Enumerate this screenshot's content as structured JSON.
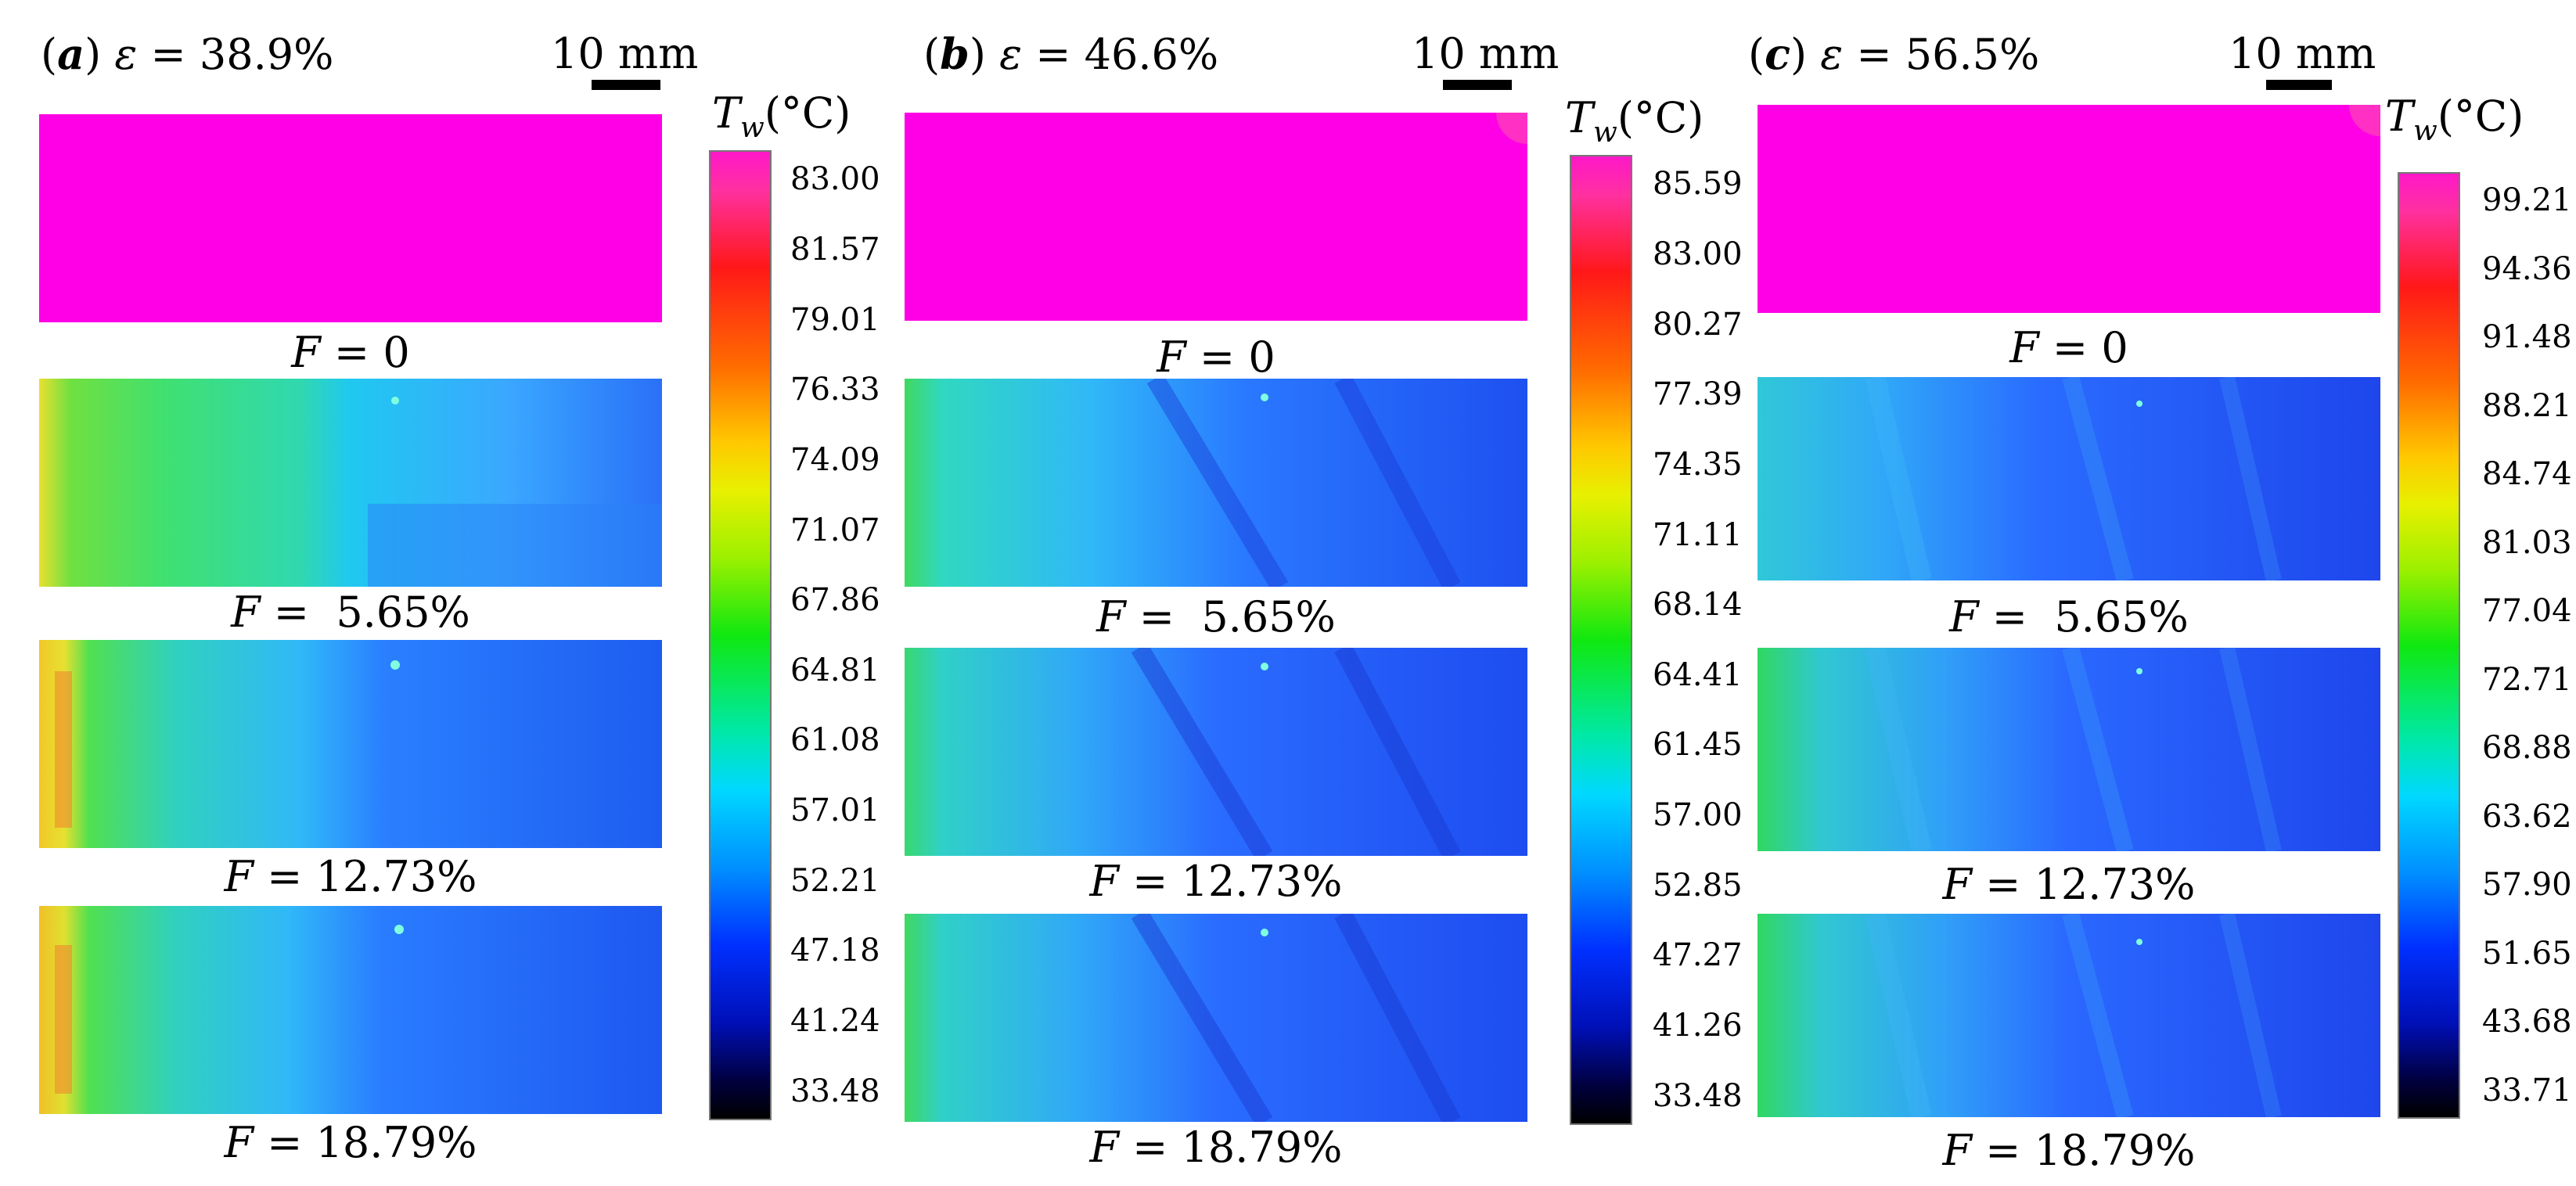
{
  "scale_label": "10 mm",
  "colorbar_title": {
    "symbol": "T",
    "subscript": "w",
    "unit": "(°C)"
  },
  "caption_symbol": "F",
  "panels": [
    {
      "letter": "a",
      "epsilon": "38.9%",
      "captions": [
        "= 0",
        "=  5.65%",
        "= 12.73%",
        "= 18.79%"
      ],
      "colorbar_ticks": [
        "83.00",
        "81.57",
        "79.01",
        "76.33",
        "74.09",
        "71.07",
        "67.86",
        "64.81",
        "61.08",
        "57.01",
        "52.21",
        "47.18",
        "41.24",
        "33.48"
      ]
    },
    {
      "letter": "b",
      "epsilon": "46.6%",
      "captions": [
        "= 0",
        "=  5.65%",
        "= 12.73%",
        "= 18.79%"
      ],
      "colorbar_ticks": [
        "85.59",
        "83.00",
        "80.27",
        "77.39",
        "74.35",
        "71.11",
        "68.14",
        "64.41",
        "61.45",
        "57.00",
        "52.85",
        "47.27",
        "41.26",
        "33.48"
      ]
    },
    {
      "letter": "c",
      "epsilon": "56.5%",
      "captions": [
        "= 0",
        "=  5.65%",
        "= 12.73%",
        "= 18.79%"
      ],
      "colorbar_ticks": [
        "99.21",
        "94.36",
        "91.48",
        "88.21",
        "84.74",
        "81.03",
        "77.04",
        "72.71",
        "68.88",
        "63.62",
        "57.90",
        "51.65",
        "43.68",
        "33.71"
      ]
    }
  ],
  "colors": {
    "hot": "#ff00e6",
    "cool": "#1a5cf0",
    "mid": "#18c8f0",
    "warm": "#28e040"
  }
}
